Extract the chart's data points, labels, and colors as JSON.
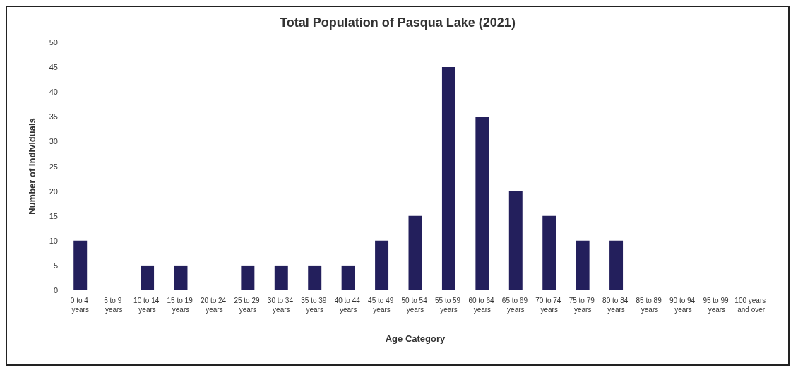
{
  "chart_data": {
    "type": "bar",
    "title": "Total Population of Pasqua Lake (2021)",
    "xlabel": "Age Category",
    "ylabel": "Number of Individuals",
    "categories": [
      "0 to 4 years",
      "5 to 9 years",
      "10 to 14 years",
      "15 to 19 years",
      "20 to 24 years",
      "25 to 29 years",
      "30 to 34 years",
      "35 to 39 years",
      "40 to 44 years",
      "45 to 49 years",
      "50 to 54 years",
      "55 to 59 years",
      "60 to 64 years",
      "65 to 69 years",
      "70 to 74 years",
      "75 to 79 years",
      "80 to 84 years",
      "85 to 89 years",
      "90 to 94 years",
      "95 to 99 years",
      "100 years and over"
    ],
    "values": [
      10,
      0,
      5,
      5,
      0,
      5,
      5,
      5,
      5,
      10,
      15,
      45,
      35,
      20,
      15,
      10,
      10,
      0,
      0,
      0,
      0
    ],
    "color": "#231f5c",
    "ylim": [
      0,
      50
    ],
    "yticks": [
      0,
      5,
      10,
      15,
      20,
      25,
      30,
      35,
      40,
      45,
      50
    ]
  }
}
